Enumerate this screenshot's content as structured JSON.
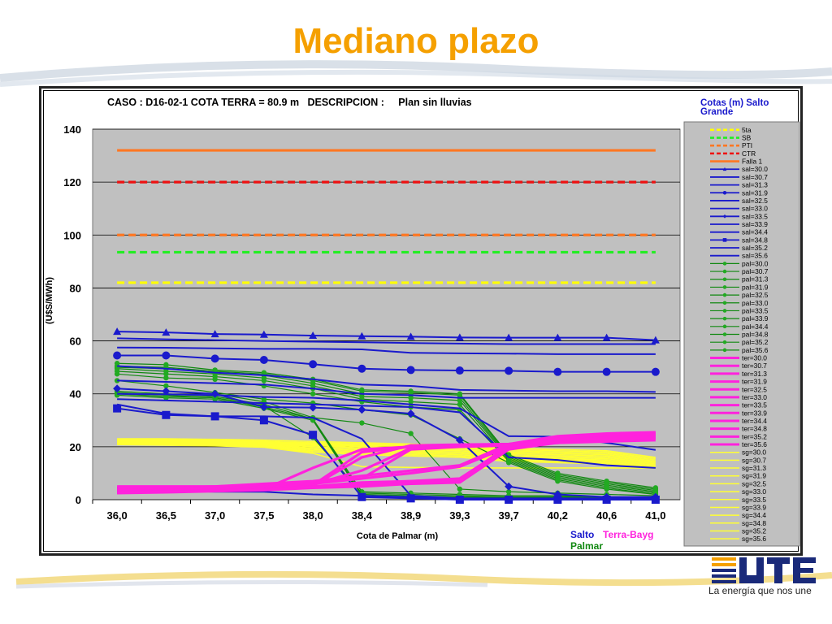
{
  "slide": {
    "title": "Mediano plazo",
    "tagline": "La energía que nos une",
    "title_color": "#f5a000"
  },
  "chart_data": {
    "type": "line",
    "title": "CASO : D16-02-1 COTA TERRA = 80.9 m   DESCRIPCION :     Plan sin lluvias",
    "xlabel": "Cota de Palmar (m)",
    "ylabel": "(U$S/MWh)",
    "categories": [
      "36,0",
      "36,5",
      "37,0",
      "37,5",
      "38,0",
      "38,4",
      "38,9",
      "39,3",
      "39,7",
      "40,2",
      "40,6",
      "41,0"
    ],
    "ylim": [
      0,
      140
    ],
    "yticks": [
      0,
      20,
      40,
      60,
      80,
      100,
      120,
      140
    ],
    "grid": true,
    "legend_title": "Cotas (m) Salto Grande",
    "legend_position": "right",
    "footer_labels": [
      {
        "text": "Salto",
        "color": "#1a1acc"
      },
      {
        "text": "Terra-Bayg",
        "color": "#ff22dd"
      },
      {
        "text": "Palmar",
        "color": "#118811"
      }
    ],
    "reference_series": [
      {
        "name": "5ta",
        "color": "#ffff00",
        "dash": "dash",
        "values": [
          82,
          82,
          82,
          82,
          82,
          82,
          82,
          82,
          82,
          82,
          82,
          82
        ]
      },
      {
        "name": "SB",
        "color": "#22ee22",
        "dash": "dash",
        "values": [
          93.5,
          93.5,
          93.5,
          93.5,
          93.5,
          93.5,
          93.5,
          93.5,
          93.5,
          93.5,
          93.5,
          93.5
        ]
      },
      {
        "name": "PTI",
        "color": "#ff7722",
        "dash": "dash",
        "values": [
          100,
          100,
          100,
          100,
          100,
          100,
          100,
          100,
          100,
          100,
          100,
          100
        ]
      },
      {
        "name": "CTR",
        "color": "#ee1111",
        "dash": "dash",
        "values": [
          120,
          120,
          120,
          120,
          120,
          120,
          120,
          120,
          120,
          120,
          120,
          120
        ]
      },
      {
        "name": "Falla 1",
        "color": "#ff7722",
        "dash": "solid",
        "values": [
          132,
          132,
          132,
          132,
          132,
          132,
          132,
          132,
          132,
          132,
          132,
          132
        ]
      }
    ],
    "salto_series": [
      {
        "name": "sal=30.0",
        "marker": "triangle",
        "values": [
          63.5,
          63.2,
          62.6,
          62.4,
          62,
          61.8,
          61.6,
          61.3,
          61.2,
          61.2,
          61.2,
          60.3
        ]
      },
      {
        "name": "sal=30.7",
        "marker": "none",
        "values": [
          61,
          60.6,
          60.3,
          60,
          59.7,
          59.5,
          59.2,
          59,
          58.8,
          58.8,
          58.8,
          58.8
        ]
      },
      {
        "name": "sal=31.3",
        "marker": "none",
        "values": [
          57.5,
          57.4,
          57.2,
          57,
          57,
          56.8,
          55.5,
          55.3,
          55.2,
          55,
          55,
          55
        ]
      },
      {
        "name": "sal=31.9",
        "marker": "circle",
        "values": [
          54.5,
          54.5,
          53.3,
          52.8,
          51.2,
          49.5,
          49,
          48.8,
          48.7,
          48.3,
          48.3,
          48.3
        ]
      },
      {
        "name": "sal=32.5",
        "marker": "none",
        "values": [
          50.5,
          49.5,
          48,
          47,
          45.5,
          43.5,
          43,
          41.5,
          41.2,
          41,
          41,
          40.7
        ]
      },
      {
        "name": "sal=33.0",
        "marker": "none",
        "values": [
          45,
          44.5,
          44,
          43.5,
          42,
          40,
          39.5,
          38.5,
          38.5,
          38.5,
          38.5,
          38.5
        ]
      },
      {
        "name": "sal=33.5",
        "marker": "diamond",
        "values": [
          42,
          41,
          40,
          35,
          34.8,
          34,
          32.5,
          22.5,
          5,
          2,
          1,
          1
        ]
      },
      {
        "name": "sal=33.9",
        "marker": "none",
        "values": [
          40,
          39.8,
          39.5,
          38.8,
          38.5,
          37.5,
          36,
          34.5,
          24,
          23.8,
          21.5,
          18.8
        ]
      },
      {
        "name": "sal=34.4",
        "marker": "none",
        "values": [
          38,
          37.5,
          37,
          36.5,
          36,
          35.5,
          35,
          33,
          16,
          15,
          13,
          12
        ]
      },
      {
        "name": "sal=34.8",
        "marker": "square",
        "values": [
          34.5,
          32,
          31.5,
          30,
          24.5,
          1,
          0.5,
          0,
          0,
          0,
          0,
          0
        ]
      },
      {
        "name": "sal=35.2",
        "marker": "none",
        "values": [
          36,
          32.5,
          31.5,
          31.5,
          31,
          23,
          1.5,
          0.5,
          0.3,
          0.3,
          0.3,
          0.3
        ]
      },
      {
        "name": "sal=35.6",
        "marker": "none",
        "values": [
          4.5,
          3.5,
          3,
          3,
          2,
          1.5,
          1,
          0.5,
          0.5,
          0.5,
          0.5,
          0.5
        ]
      }
    ],
    "palmar_series": [
      {
        "name": "pal=30.0",
        "values": [
          51.5,
          51,
          49,
          48,
          45.5,
          41.5,
          41,
          40,
          17,
          10,
          7,
          4.5
        ]
      },
      {
        "name": "pal=30.7",
        "values": [
          50.5,
          50,
          48.5,
          47.5,
          45,
          41,
          40.5,
          39.5,
          16.5,
          9.5,
          6.5,
          4
        ]
      },
      {
        "name": "pal=31.3",
        "values": [
          50,
          49.5,
          48,
          47,
          44,
          40,
          39.5,
          38.5,
          16,
          9,
          6,
          3.5
        ]
      },
      {
        "name": "pal=31.9",
        "values": [
          49.5,
          48.5,
          47.5,
          46,
          43,
          39,
          38.5,
          37.5,
          15.5,
          8.5,
          5.5,
          3
        ]
      },
      {
        "name": "pal=32.5",
        "values": [
          48.5,
          47.5,
          46.5,
          45,
          42,
          38,
          37,
          36,
          15,
          8,
          5,
          2.5
        ]
      },
      {
        "name": "pal=33.0",
        "values": [
          47.5,
          46,
          45.5,
          43,
          40,
          37,
          35,
          34,
          14.5,
          7.5,
          4.5,
          2
        ]
      },
      {
        "name": "pal=33.5",
        "values": [
          45,
          43,
          40.5,
          38,
          36.5,
          34,
          32,
          23,
          14,
          7,
          4,
          2
        ]
      },
      {
        "name": "pal=33.9",
        "values": [
          42,
          41,
          40,
          37,
          31,
          29,
          25,
          4,
          3,
          2.5,
          2,
          1.5
        ]
      },
      {
        "name": "pal=34.4",
        "values": [
          41,
          40,
          39,
          36,
          30.5,
          3,
          2.5,
          2,
          1.5,
          1.5,
          1,
          1
        ]
      },
      {
        "name": "pal=34.8",
        "values": [
          40.5,
          39.5,
          38.5,
          35.5,
          23.5,
          2.5,
          2,
          1.5,
          1,
          1,
          1,
          1
        ]
      },
      {
        "name": "pal=35.2",
        "values": [
          40,
          39,
          38.5,
          35,
          30.5,
          2,
          1.5,
          1,
          1,
          1,
          1,
          1
        ]
      },
      {
        "name": "pal=35.6",
        "values": [
          39.5,
          38.5,
          38,
          34.5,
          30,
          1.5,
          1,
          0.8,
          0.8,
          0.8,
          0.8,
          0.8
        ]
      }
    ],
    "terra_series": [
      {
        "name": "ter=30.0",
        "values": [
          5,
          5,
          5,
          6,
          7,
          9,
          11,
          13,
          21,
          24,
          25,
          25.5
        ]
      },
      {
        "name": "ter=30.7",
        "values": [
          4.5,
          4.5,
          5,
          5.5,
          6.5,
          8,
          10,
          12.5,
          20,
          23.5,
          24.5,
          25
        ]
      },
      {
        "name": "ter=31.3",
        "values": [
          4,
          4.2,
          4.5,
          5,
          6,
          8,
          19,
          20,
          20.5,
          23,
          24,
          24.5
        ]
      },
      {
        "name": "ter=31.9",
        "values": [
          3.5,
          4,
          4.3,
          4.8,
          5.8,
          11,
          19.5,
          20.5,
          21,
          22.5,
          23.5,
          24
        ]
      },
      {
        "name": "ter=32.5",
        "values": [
          3.5,
          3.8,
          4.2,
          4.5,
          5.5,
          18,
          20,
          20.5,
          21,
          22,
          23,
          23.5
        ]
      },
      {
        "name": "ter=33.0",
        "values": [
          3.2,
          3.6,
          4,
          4.3,
          5.3,
          16,
          20.5,
          20.8,
          21,
          21.5,
          22.5,
          23
        ]
      },
      {
        "name": "ter=33.5",
        "values": [
          3,
          3.5,
          3.8,
          4.2,
          5,
          6,
          7,
          8,
          20,
          22,
          23,
          24
        ]
      },
      {
        "name": "ter=33.9",
        "values": [
          3,
          3.3,
          3.6,
          4,
          12,
          19,
          20,
          20.5,
          21,
          21.5,
          22,
          22.5
        ]
      },
      {
        "name": "ter=34.4",
        "values": [
          2.8,
          3.2,
          3.5,
          3.9,
          5,
          6.5,
          7,
          7.5,
          20.5,
          22.5,
          24,
          24.5
        ]
      },
      {
        "name": "ter=34.8",
        "values": [
          2.8,
          3,
          3.4,
          3.8,
          4.8,
          6,
          6.5,
          7,
          20,
          23,
          24.5,
          25
        ]
      },
      {
        "name": "ter=35.2",
        "values": [
          2.6,
          3,
          3.3,
          3.7,
          4.6,
          5.5,
          6.5,
          7,
          19.5,
          22,
          23.5,
          24
        ]
      },
      {
        "name": "ter=35.6",
        "values": [
          2.5,
          2.8,
          3.2,
          3.6,
          4.5,
          5,
          6,
          6.5,
          19,
          21.5,
          23,
          23.5
        ]
      }
    ],
    "sg_series": [
      {
        "name": "sg=30.0",
        "values": [
          23,
          23,
          22.8,
          22.5,
          22,
          21.5,
          21,
          20.5,
          19.5,
          19,
          18.5,
          16
        ]
      },
      {
        "name": "sg=30.7",
        "values": [
          22.8,
          22.7,
          22.5,
          22,
          21.5,
          21,
          20.5,
          20,
          19,
          18.5,
          18,
          15.5
        ]
      },
      {
        "name": "sg=31.3",
        "values": [
          22.6,
          22.5,
          22.2,
          21.8,
          21.3,
          20.8,
          20.3,
          19.8,
          18.5,
          18,
          17.5,
          15
        ]
      },
      {
        "name": "sg=31.9",
        "values": [
          22.4,
          22.2,
          22,
          21.6,
          21,
          20.5,
          20,
          19.5,
          18,
          17.5,
          17,
          14.5
        ]
      },
      {
        "name": "sg=32.5",
        "values": [
          22.2,
          22,
          21.8,
          21.4,
          20.8,
          20,
          19.5,
          19,
          17.5,
          17,
          16.5,
          14
        ]
      },
      {
        "name": "sg=33.0",
        "values": [
          22,
          21.8,
          21.5,
          21.2,
          20.5,
          19.5,
          19,
          18.5,
          17,
          16.5,
          16,
          13.5
        ]
      },
      {
        "name": "sg=33.5",
        "values": [
          21.8,
          21.6,
          21.3,
          21,
          20,
          19,
          18.5,
          18,
          16.5,
          16,
          15.5,
          13
        ]
      },
      {
        "name": "sg=33.9",
        "values": [
          21.6,
          21.4,
          21.1,
          20.8,
          19.5,
          18.5,
          18,
          17.5,
          16,
          15.5,
          15,
          12.5
        ]
      },
      {
        "name": "sg=34.4",
        "values": [
          21.4,
          21.2,
          21,
          20.5,
          19,
          18,
          17.5,
          17,
          15.5,
          15,
          14.5,
          12
        ]
      },
      {
        "name": "sg=34.8",
        "values": [
          21.2,
          21,
          20.8,
          20.2,
          18.5,
          17.5,
          17,
          16.5,
          15,
          14.5,
          14,
          12
        ]
      },
      {
        "name": "sg=35.2",
        "values": [
          21,
          20.8,
          20.5,
          20,
          18,
          17,
          16.5,
          16,
          14.5,
          14,
          13.5,
          12
        ]
      },
      {
        "name": "sg=35.6",
        "values": [
          20.8,
          20.6,
          20.3,
          19.8,
          17.5,
          12.5,
          12.2,
          12,
          12,
          12,
          12,
          12
        ]
      }
    ],
    "colors": {
      "salto": "#1a1acc",
      "palmar": "#118811",
      "palmar_marker": "#22aa22",
      "terra": "#ff22dd",
      "sg": "#ffff33",
      "plot_bg": "#c0c0c0",
      "legend_bg": "#c0c0c0"
    }
  }
}
